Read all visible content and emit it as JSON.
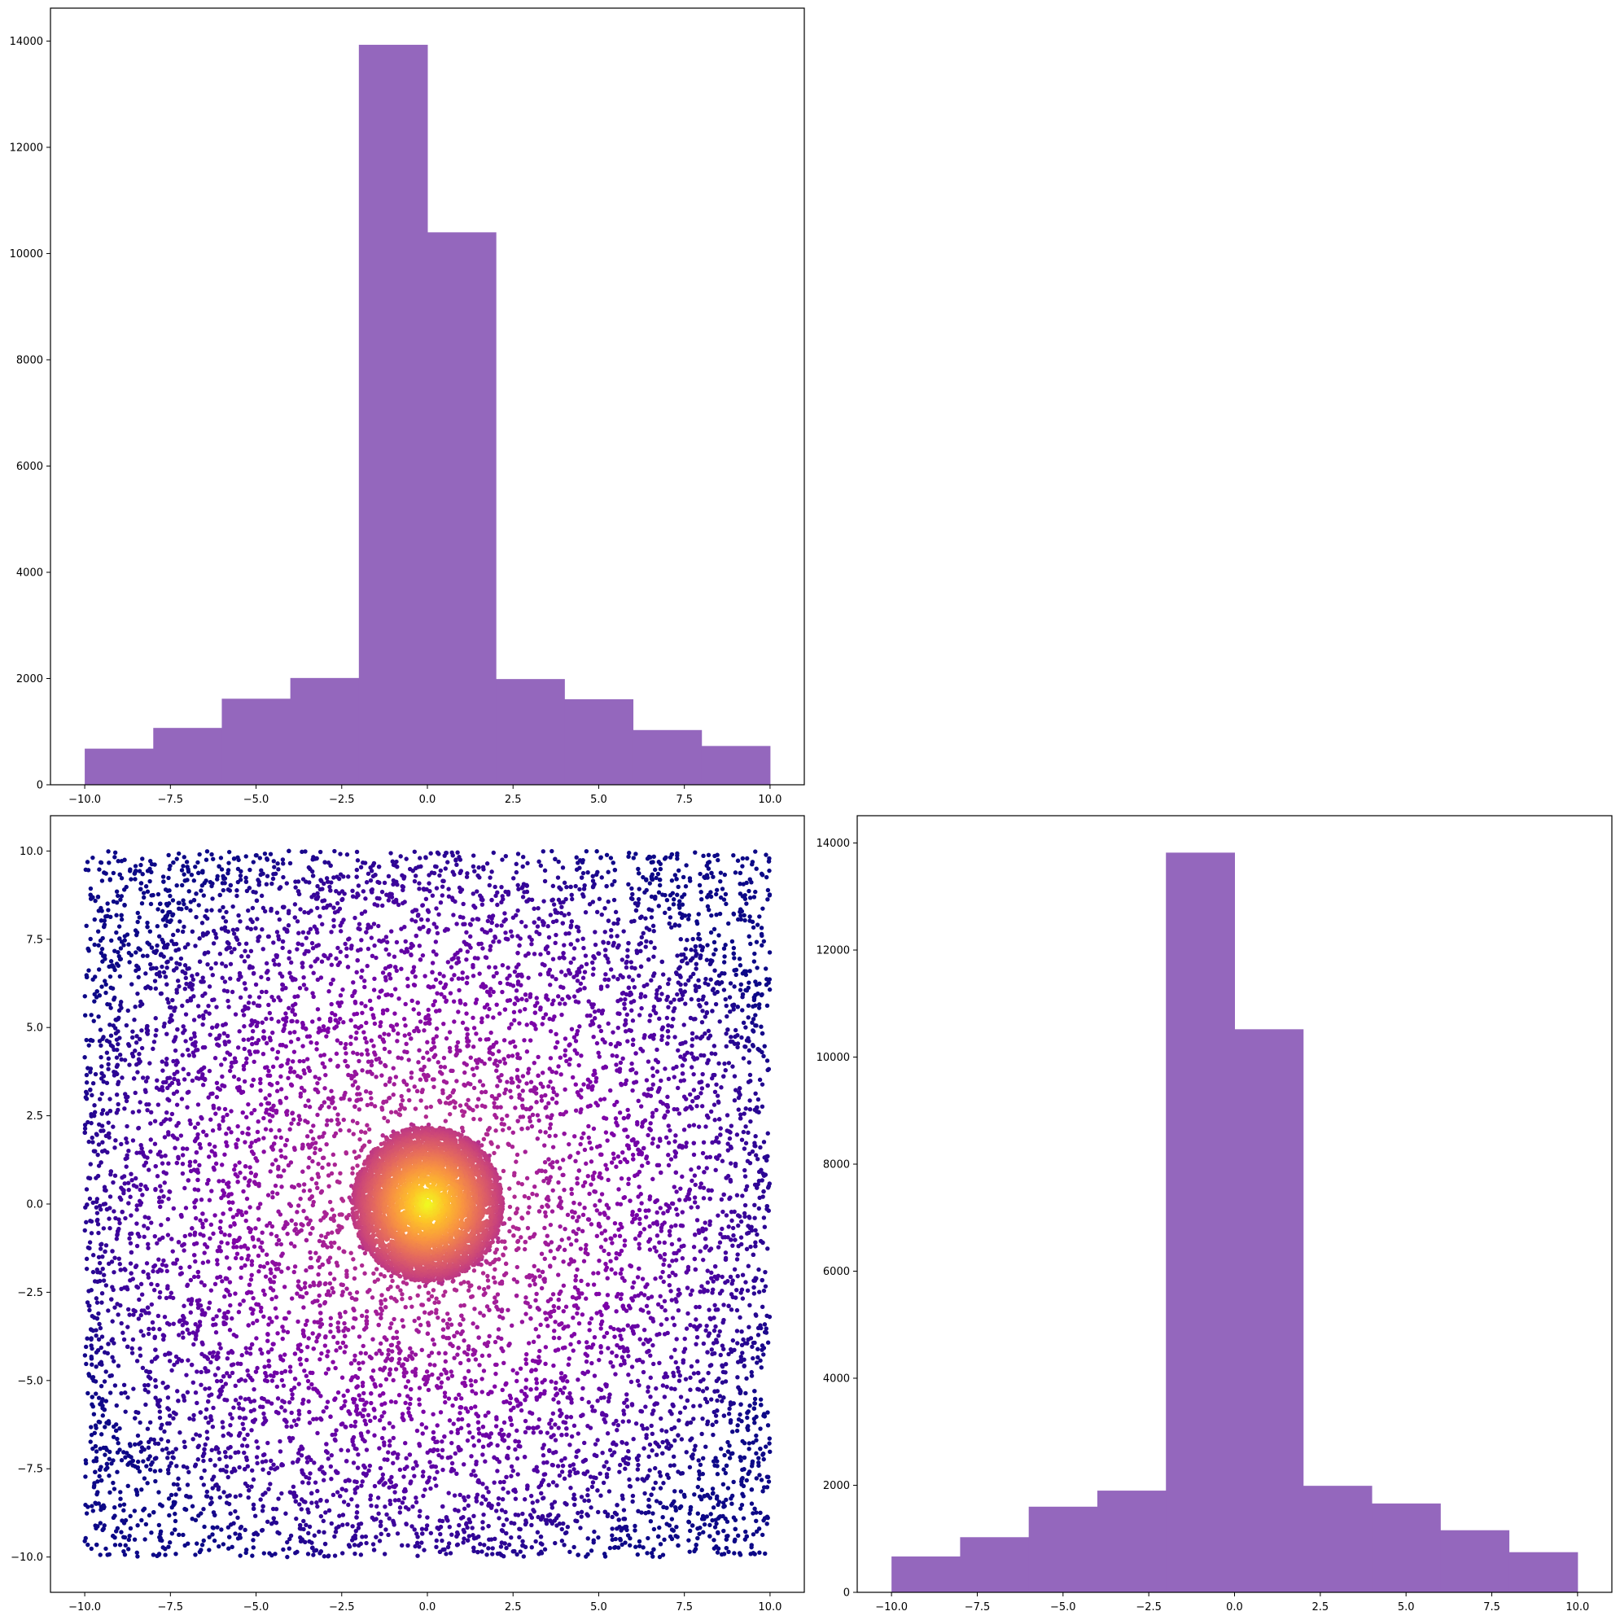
{
  "chart_data": [
    {
      "id": "hist-x",
      "type": "bar",
      "subtype": "histogram",
      "title": "",
      "xlabel": "",
      "ylabel": "",
      "bin_edges": [
        -10,
        -8,
        -6,
        -4,
        -2,
        0,
        2,
        4,
        6,
        8,
        10
      ],
      "values": [
        680,
        1070,
        1620,
        2010,
        13930,
        10400,
        1990,
        1610,
        1030,
        730
      ],
      "color": "#9467bd",
      "xlim": [
        -11,
        11
      ],
      "ylim": [
        0,
        14620
      ],
      "xticks": [
        -10,
        -7.5,
        -5,
        -2.5,
        0,
        2.5,
        5,
        7.5,
        10
      ],
      "xtick_labels": [
        "−10.0",
        "−7.5",
        "−5.0",
        "−2.5",
        "0.0",
        "2.5",
        "5.0",
        "7.5",
        "10.0"
      ],
      "yticks": [
        0,
        2000,
        4000,
        6000,
        8000,
        10000,
        12000,
        14000
      ],
      "ytick_labels": [
        "0",
        "2000",
        "4000",
        "6000",
        "8000",
        "10000",
        "12000",
        "14000"
      ],
      "grid": false
    },
    {
      "id": "scatter-xy",
      "type": "scatter",
      "title": "",
      "xlabel": "",
      "ylabel": "",
      "colormap": "plasma",
      "color_encoding": "point density (high near origin)",
      "distribution": "uniform square from -10 to 10 plus dense cluster of radius about 2 at the origin",
      "x_range": [
        -10,
        10
      ],
      "y_range": [
        -10,
        10
      ],
      "dense_cluster_center": [
        0,
        0
      ],
      "dense_cluster_radius": 2.2,
      "xlim": [
        -11,
        11
      ],
      "ylim": [
        -11,
        11
      ],
      "xticks": [
        -10,
        -7.5,
        -5,
        -2.5,
        0,
        2.5,
        5,
        7.5,
        10
      ],
      "xtick_labels": [
        "−10.0",
        "−7.5",
        "−5.0",
        "−2.5",
        "0.0",
        "2.5",
        "5.0",
        "7.5",
        "10.0"
      ],
      "yticks": [
        -10,
        -7.5,
        -5,
        -2.5,
        0,
        2.5,
        5,
        7.5,
        10
      ],
      "ytick_labels": [
        "−10.0",
        "−7.5",
        "−5.0",
        "−2.5",
        "0.0",
        "2.5",
        "5.0",
        "7.5",
        "10.0"
      ],
      "grid": false
    },
    {
      "id": "hist-y",
      "type": "bar",
      "subtype": "histogram",
      "title": "",
      "xlabel": "",
      "ylabel": "",
      "bin_edges": [
        -10,
        -8,
        -6,
        -4,
        -2,
        0,
        2,
        4,
        6,
        8,
        10
      ],
      "values": [
        670,
        1030,
        1600,
        1900,
        13820,
        10520,
        1990,
        1660,
        1160,
        750
      ],
      "color": "#9467bd",
      "xlim": [
        -11,
        11
      ],
      "ylim": [
        0,
        14510
      ],
      "xticks": [
        -10,
        -7.5,
        -5,
        -2.5,
        0,
        2.5,
        5,
        7.5,
        10
      ],
      "xtick_labels": [
        "−10.0",
        "−7.5",
        "−5.0",
        "−2.5",
        "0.0",
        "2.5",
        "5.0",
        "7.5",
        "10.0"
      ],
      "yticks": [
        0,
        2000,
        4000,
        6000,
        8000,
        10000,
        12000,
        14000
      ],
      "ytick_labels": [
        "0",
        "2000",
        "4000",
        "6000",
        "8000",
        "10000",
        "12000",
        "14000"
      ],
      "grid": false
    }
  ]
}
